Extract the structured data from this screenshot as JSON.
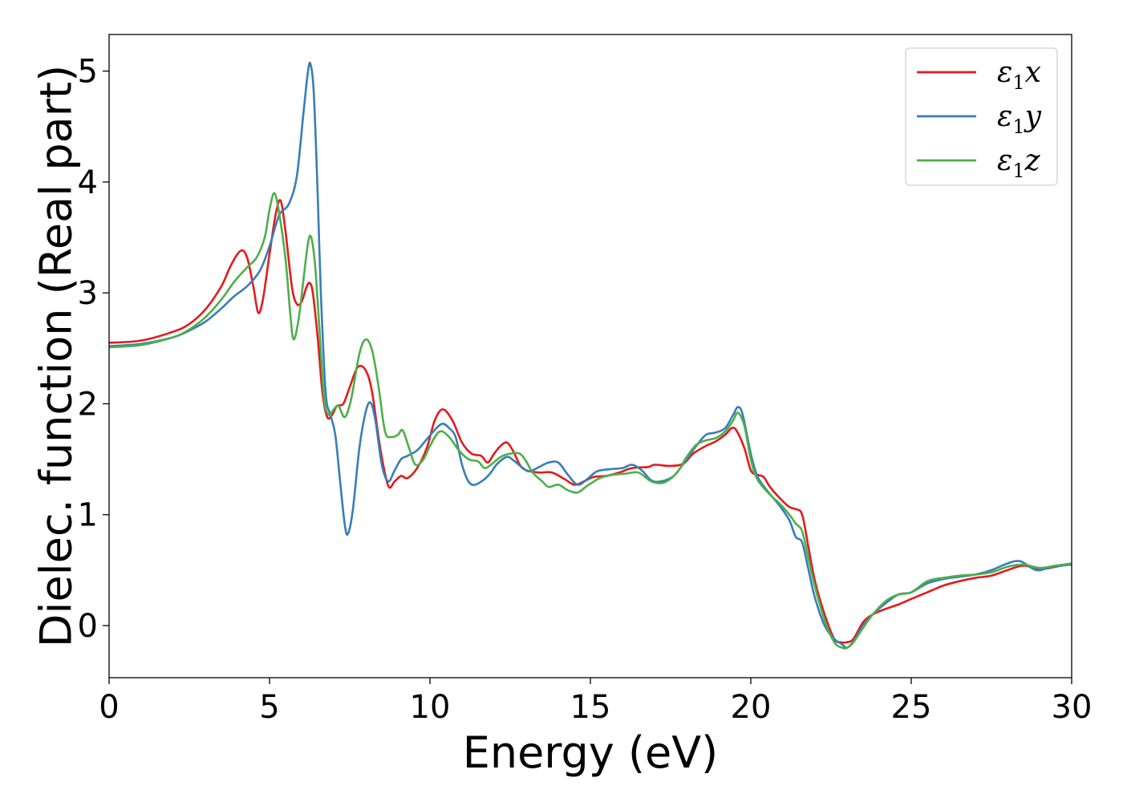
{
  "chart_data": {
    "type": "line",
    "title": "",
    "xlabel": "Energy (eV)",
    "ylabel": "Dielec. function (Real part)",
    "xlim": [
      0,
      30
    ],
    "ylim": [
      -0.47,
      5.33
    ],
    "xticks": [
      0,
      5,
      10,
      15,
      20,
      25,
      30
    ],
    "yticks": [
      0,
      1,
      2,
      3,
      4,
      5
    ],
    "xtick_labels": [
      "0",
      "5",
      "10",
      "15",
      "20",
      "25",
      "30"
    ],
    "ytick_labels": [
      "0",
      "1",
      "2",
      "3",
      "4",
      "5"
    ],
    "grid": false,
    "legend_position": "top-right",
    "series": [
      {
        "name": "ε1x",
        "legend": {
          "base": "ε",
          "sub": "1",
          "var": "x"
        },
        "color": "#e41a1c",
        "points": [
          [
            0,
            2.55
          ],
          [
            1,
            2.57
          ],
          [
            2,
            2.65
          ],
          [
            2.5,
            2.72
          ],
          [
            3,
            2.85
          ],
          [
            3.5,
            3.06
          ],
          [
            3.8,
            3.25
          ],
          [
            4.1,
            3.38
          ],
          [
            4.3,
            3.32
          ],
          [
            4.5,
            3.05
          ],
          [
            4.65,
            2.82
          ],
          [
            4.8,
            2.95
          ],
          [
            5.0,
            3.35
          ],
          [
            5.2,
            3.72
          ],
          [
            5.35,
            3.83
          ],
          [
            5.5,
            3.55
          ],
          [
            5.7,
            3.05
          ],
          [
            5.85,
            2.9
          ],
          [
            6.0,
            2.92
          ],
          [
            6.15,
            3.05
          ],
          [
            6.25,
            3.09
          ],
          [
            6.35,
            3.0
          ],
          [
            6.5,
            2.6
          ],
          [
            6.65,
            2.1
          ],
          [
            6.8,
            1.88
          ],
          [
            6.95,
            1.9
          ],
          [
            7.1,
            1.98
          ],
          [
            7.3,
            2.0
          ],
          [
            7.5,
            2.15
          ],
          [
            7.75,
            2.33
          ],
          [
            8.0,
            2.3
          ],
          [
            8.2,
            2.1
          ],
          [
            8.45,
            1.6
          ],
          [
            8.7,
            1.26
          ],
          [
            8.9,
            1.3
          ],
          [
            9.1,
            1.35
          ],
          [
            9.3,
            1.33
          ],
          [
            9.6,
            1.42
          ],
          [
            9.9,
            1.6
          ],
          [
            10.15,
            1.85
          ],
          [
            10.4,
            1.95
          ],
          [
            10.7,
            1.85
          ],
          [
            11.0,
            1.65
          ],
          [
            11.3,
            1.55
          ],
          [
            11.6,
            1.53
          ],
          [
            11.8,
            1.47
          ],
          [
            12.0,
            1.55
          ],
          [
            12.2,
            1.62
          ],
          [
            12.4,
            1.65
          ],
          [
            12.6,
            1.57
          ],
          [
            12.8,
            1.45
          ],
          [
            13.0,
            1.4
          ],
          [
            13.4,
            1.38
          ],
          [
            13.8,
            1.38
          ],
          [
            14.2,
            1.32
          ],
          [
            14.5,
            1.27
          ],
          [
            14.8,
            1.3
          ],
          [
            15.1,
            1.34
          ],
          [
            15.5,
            1.35
          ],
          [
            15.9,
            1.38
          ],
          [
            16.3,
            1.42
          ],
          [
            16.8,
            1.43
          ],
          [
            17.0,
            1.45
          ],
          [
            17.5,
            1.44
          ],
          [
            17.9,
            1.46
          ],
          [
            18.2,
            1.55
          ],
          [
            18.6,
            1.62
          ],
          [
            18.9,
            1.66
          ],
          [
            19.2,
            1.72
          ],
          [
            19.4,
            1.78
          ],
          [
            19.55,
            1.76
          ],
          [
            19.8,
            1.6
          ],
          [
            20.0,
            1.4
          ],
          [
            20.2,
            1.36
          ],
          [
            20.4,
            1.34
          ],
          [
            20.6,
            1.25
          ],
          [
            20.9,
            1.15
          ],
          [
            21.2,
            1.07
          ],
          [
            21.4,
            1.05
          ],
          [
            21.6,
            1.0
          ],
          [
            21.8,
            0.7
          ],
          [
            22.0,
            0.4
          ],
          [
            22.3,
            0.1
          ],
          [
            22.6,
            -0.12
          ],
          [
            22.8,
            -0.15
          ],
          [
            23.0,
            -0.15
          ],
          [
            23.2,
            -0.12
          ],
          [
            23.5,
            0.03
          ],
          [
            23.8,
            0.1
          ],
          [
            24.2,
            0.15
          ],
          [
            24.6,
            0.19
          ],
          [
            25.0,
            0.24
          ],
          [
            25.5,
            0.3
          ],
          [
            26.0,
            0.36
          ],
          [
            26.5,
            0.4
          ],
          [
            27.0,
            0.43
          ],
          [
            27.5,
            0.45
          ],
          [
            28.0,
            0.5
          ],
          [
            28.5,
            0.54
          ],
          [
            29.0,
            0.51
          ],
          [
            29.5,
            0.53
          ],
          [
            30.0,
            0.56
          ]
        ]
      },
      {
        "name": "ε1y",
        "legend": {
          "base": "ε",
          "sub": "1",
          "var": "y"
        },
        "color": "#377eb8",
        "points": [
          [
            0,
            2.52
          ],
          [
            1,
            2.54
          ],
          [
            2,
            2.6
          ],
          [
            2.5,
            2.66
          ],
          [
            3,
            2.74
          ],
          [
            3.5,
            2.86
          ],
          [
            3.9,
            2.97
          ],
          [
            4.3,
            3.06
          ],
          [
            4.7,
            3.2
          ],
          [
            5.0,
            3.42
          ],
          [
            5.3,
            3.7
          ],
          [
            5.6,
            3.8
          ],
          [
            5.85,
            4.05
          ],
          [
            6.05,
            4.6
          ],
          [
            6.2,
            5.0
          ],
          [
            6.28,
            5.06
          ],
          [
            6.38,
            4.8
          ],
          [
            6.5,
            3.9
          ],
          [
            6.6,
            3.0
          ],
          [
            6.75,
            2.1
          ],
          [
            6.9,
            1.9
          ],
          [
            7.05,
            1.72
          ],
          [
            7.2,
            1.3
          ],
          [
            7.35,
            0.9
          ],
          [
            7.45,
            0.83
          ],
          [
            7.6,
            1.05
          ],
          [
            7.8,
            1.6
          ],
          [
            8.0,
            1.93
          ],
          [
            8.15,
            2.01
          ],
          [
            8.3,
            1.85
          ],
          [
            8.5,
            1.45
          ],
          [
            8.7,
            1.3
          ],
          [
            8.9,
            1.4
          ],
          [
            9.1,
            1.5
          ],
          [
            9.3,
            1.53
          ],
          [
            9.6,
            1.58
          ],
          [
            9.9,
            1.68
          ],
          [
            10.2,
            1.78
          ],
          [
            10.4,
            1.82
          ],
          [
            10.6,
            1.78
          ],
          [
            10.8,
            1.7
          ],
          [
            11.0,
            1.45
          ],
          [
            11.2,
            1.3
          ],
          [
            11.4,
            1.27
          ],
          [
            11.7,
            1.32
          ],
          [
            11.9,
            1.38
          ],
          [
            12.1,
            1.46
          ],
          [
            12.4,
            1.52
          ],
          [
            12.6,
            1.49
          ],
          [
            12.9,
            1.42
          ],
          [
            13.1,
            1.39
          ],
          [
            13.4,
            1.43
          ],
          [
            13.7,
            1.47
          ],
          [
            14.0,
            1.47
          ],
          [
            14.3,
            1.36
          ],
          [
            14.6,
            1.27
          ],
          [
            14.9,
            1.32
          ],
          [
            15.2,
            1.39
          ],
          [
            15.6,
            1.41
          ],
          [
            16.0,
            1.42
          ],
          [
            16.3,
            1.45
          ],
          [
            16.6,
            1.4
          ],
          [
            16.9,
            1.31
          ],
          [
            17.2,
            1.3
          ],
          [
            17.6,
            1.35
          ],
          [
            18.0,
            1.5
          ],
          [
            18.3,
            1.62
          ],
          [
            18.6,
            1.72
          ],
          [
            18.9,
            1.74
          ],
          [
            19.2,
            1.78
          ],
          [
            19.45,
            1.9
          ],
          [
            19.6,
            1.97
          ],
          [
            19.75,
            1.9
          ],
          [
            20.0,
            1.55
          ],
          [
            20.2,
            1.35
          ],
          [
            20.5,
            1.22
          ],
          [
            20.9,
            1.08
          ],
          [
            21.2,
            0.95
          ],
          [
            21.4,
            0.8
          ],
          [
            21.6,
            0.75
          ],
          [
            21.8,
            0.5
          ],
          [
            22.0,
            0.25
          ],
          [
            22.3,
            0.0
          ],
          [
            22.6,
            -0.12
          ],
          [
            22.85,
            -0.17
          ],
          [
            23.0,
            -0.2
          ],
          [
            23.2,
            -0.14
          ],
          [
            23.5,
            0.0
          ],
          [
            23.8,
            0.1
          ],
          [
            24.2,
            0.2
          ],
          [
            24.6,
            0.28
          ],
          [
            25.0,
            0.3
          ],
          [
            25.5,
            0.38
          ],
          [
            26.0,
            0.42
          ],
          [
            26.5,
            0.44
          ],
          [
            27.0,
            0.46
          ],
          [
            27.5,
            0.5
          ],
          [
            28.0,
            0.56
          ],
          [
            28.4,
            0.58
          ],
          [
            28.9,
            0.5
          ],
          [
            29.4,
            0.53
          ],
          [
            30.0,
            0.55
          ]
        ]
      },
      {
        "name": "ε1z",
        "legend": {
          "base": "ε",
          "sub": "1",
          "var": "z"
        },
        "color": "#4daf4a",
        "points": [
          [
            0,
            2.51
          ],
          [
            1,
            2.53
          ],
          [
            2,
            2.6
          ],
          [
            2.5,
            2.67
          ],
          [
            3,
            2.78
          ],
          [
            3.5,
            2.94
          ],
          [
            3.9,
            3.1
          ],
          [
            4.3,
            3.23
          ],
          [
            4.6,
            3.32
          ],
          [
            4.85,
            3.5
          ],
          [
            5.0,
            3.75
          ],
          [
            5.15,
            3.9
          ],
          [
            5.3,
            3.72
          ],
          [
            5.5,
            3.3
          ],
          [
            5.65,
            2.8
          ],
          [
            5.75,
            2.58
          ],
          [
            5.9,
            2.75
          ],
          [
            6.05,
            3.1
          ],
          [
            6.2,
            3.45
          ],
          [
            6.3,
            3.5
          ],
          [
            6.42,
            3.25
          ],
          [
            6.55,
            2.7
          ],
          [
            6.7,
            2.05
          ],
          [
            6.85,
            1.9
          ],
          [
            7.0,
            1.95
          ],
          [
            7.15,
            1.98
          ],
          [
            7.35,
            1.88
          ],
          [
            7.55,
            2.05
          ],
          [
            7.8,
            2.45
          ],
          [
            8.0,
            2.58
          ],
          [
            8.2,
            2.48
          ],
          [
            8.4,
            2.15
          ],
          [
            8.6,
            1.75
          ],
          [
            8.8,
            1.7
          ],
          [
            9.0,
            1.72
          ],
          [
            9.15,
            1.76
          ],
          [
            9.35,
            1.6
          ],
          [
            9.55,
            1.45
          ],
          [
            9.8,
            1.5
          ],
          [
            10.0,
            1.62
          ],
          [
            10.3,
            1.75
          ],
          [
            10.6,
            1.7
          ],
          [
            10.9,
            1.58
          ],
          [
            11.2,
            1.5
          ],
          [
            11.5,
            1.48
          ],
          [
            11.7,
            1.42
          ],
          [
            11.9,
            1.45
          ],
          [
            12.2,
            1.52
          ],
          [
            12.5,
            1.55
          ],
          [
            12.8,
            1.55
          ],
          [
            13.0,
            1.48
          ],
          [
            13.2,
            1.38
          ],
          [
            13.5,
            1.3
          ],
          [
            13.7,
            1.25
          ],
          [
            14.0,
            1.27
          ],
          [
            14.3,
            1.22
          ],
          [
            14.6,
            1.2
          ],
          [
            14.9,
            1.26
          ],
          [
            15.3,
            1.33
          ],
          [
            15.7,
            1.36
          ],
          [
            16.1,
            1.37
          ],
          [
            16.5,
            1.38
          ],
          [
            16.9,
            1.3
          ],
          [
            17.3,
            1.29
          ],
          [
            17.7,
            1.38
          ],
          [
            18.0,
            1.52
          ],
          [
            18.3,
            1.63
          ],
          [
            18.6,
            1.67
          ],
          [
            18.9,
            1.69
          ],
          [
            19.2,
            1.75
          ],
          [
            19.45,
            1.85
          ],
          [
            19.6,
            1.92
          ],
          [
            19.8,
            1.8
          ],
          [
            20.0,
            1.5
          ],
          [
            20.2,
            1.32
          ],
          [
            20.6,
            1.18
          ],
          [
            20.9,
            1.1
          ],
          [
            21.2,
            1.0
          ],
          [
            21.4,
            0.92
          ],
          [
            21.6,
            0.85
          ],
          [
            21.8,
            0.6
          ],
          [
            22.0,
            0.35
          ],
          [
            22.3,
            0.05
          ],
          [
            22.6,
            -0.15
          ],
          [
            22.85,
            -0.2
          ],
          [
            23.0,
            -0.2
          ],
          [
            23.2,
            -0.15
          ],
          [
            23.5,
            -0.02
          ],
          [
            23.8,
            0.1
          ],
          [
            24.2,
            0.22
          ],
          [
            24.6,
            0.28
          ],
          [
            25.0,
            0.3
          ],
          [
            25.5,
            0.4
          ],
          [
            26.0,
            0.43
          ],
          [
            26.5,
            0.45
          ],
          [
            27.0,
            0.46
          ],
          [
            27.5,
            0.48
          ],
          [
            28.0,
            0.53
          ],
          [
            28.5,
            0.55
          ],
          [
            29.0,
            0.52
          ],
          [
            29.5,
            0.54
          ],
          [
            30.0,
            0.56
          ]
        ]
      }
    ]
  }
}
